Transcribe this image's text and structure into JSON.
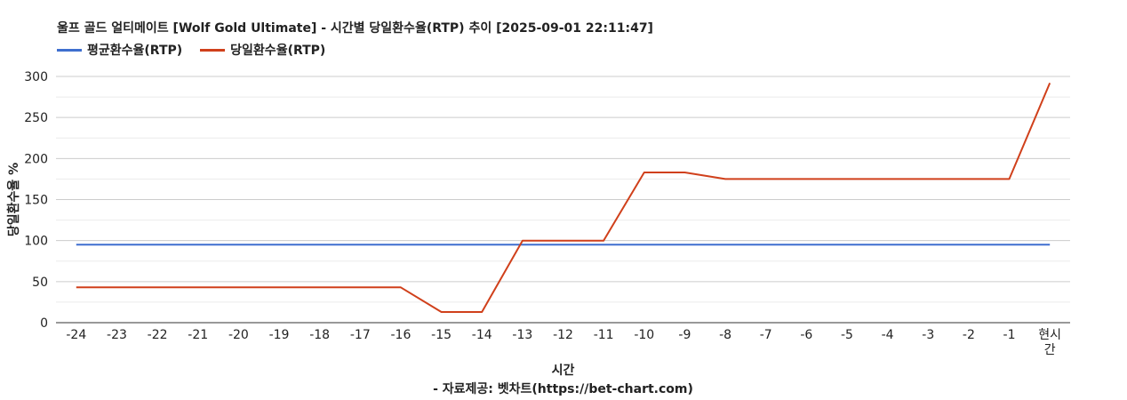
{
  "chart_data": {
    "type": "line",
    "title": "울프 골드 얼티메이트 [Wolf Gold Ultimate] - 시간별 당일환수율(RTP) 추이 [2025-09-01 22:11:47]",
    "xlabel": "시간",
    "ylabel": "당일환수율 %",
    "source": "- 자료제공: 벳차트(https://bet-chart.com)",
    "categories": [
      "-24",
      "-23",
      "-22",
      "-21",
      "-20",
      "-19",
      "-18",
      "-17",
      "-16",
      "-15",
      "-14",
      "-13",
      "-12",
      "-11",
      "-10",
      "-9",
      "-8",
      "-7",
      "-6",
      "-5",
      "-4",
      "-3",
      "-2",
      "-1",
      "현시간"
    ],
    "ylim": [
      0,
      300
    ],
    "yticks": [
      0,
      50,
      100,
      150,
      200,
      250,
      300
    ],
    "grid": true,
    "legend_position": "top-left",
    "series": [
      {
        "name": "평균환수율(RTP)",
        "color": "#3f6fcf",
        "values": [
          95,
          95,
          95,
          95,
          95,
          95,
          95,
          95,
          95,
          95,
          95,
          95,
          95,
          95,
          95,
          95,
          95,
          95,
          95,
          95,
          95,
          95,
          95,
          95,
          95
        ]
      },
      {
        "name": "당일환수율(RTP)",
        "color": "#d0401b",
        "values": [
          43,
          43,
          43,
          43,
          43,
          43,
          43,
          43,
          43,
          13,
          13,
          100,
          100,
          100,
          183,
          183,
          175,
          175,
          175,
          175,
          175,
          175,
          175,
          175,
          292
        ]
      }
    ]
  }
}
